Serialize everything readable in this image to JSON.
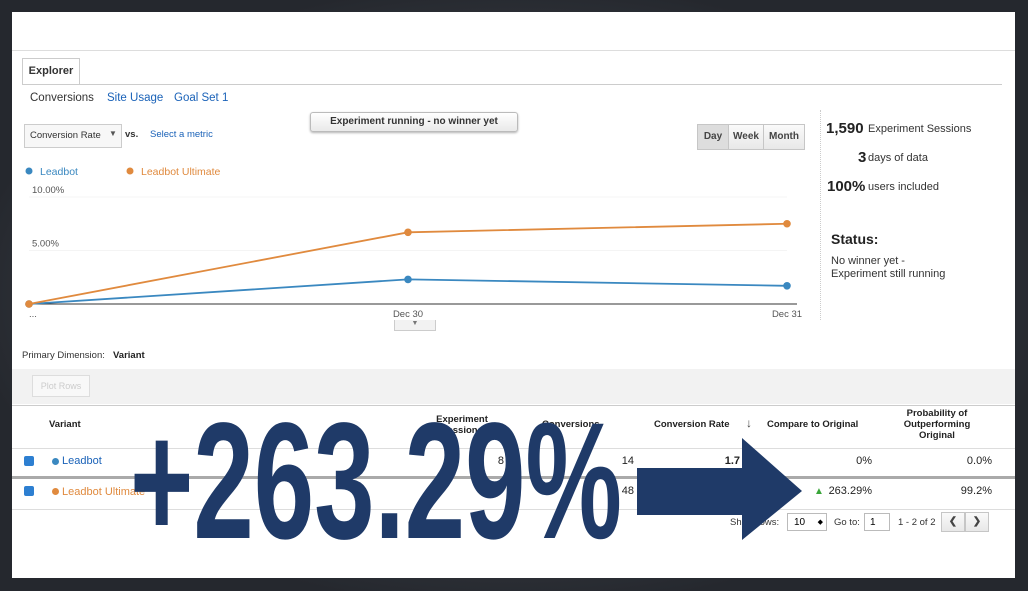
{
  "tabs": {
    "active": "Explorer",
    "items": [
      "Conversions",
      "Site Usage",
      "Goal Set 1"
    ]
  },
  "metric_selector": {
    "selected": "Conversion Rate",
    "vs": "vs.",
    "link": "Select a metric"
  },
  "tooltip": "Experiment running - no winner yet",
  "period_buttons": [
    "Day",
    "Week",
    "Month"
  ],
  "chart_data": {
    "type": "line",
    "categories": [
      "...",
      "Dec 30",
      "Dec 31"
    ],
    "series": [
      {
        "name": "Leadbot",
        "color": "#3a88c0",
        "values": [
          0,
          2.3,
          1.7
        ]
      },
      {
        "name": "Leadbot Ultimate",
        "color": "#e08a3e",
        "values": [
          0,
          6.7,
          7.5
        ]
      }
    ],
    "ylim": [
      0,
      10
    ],
    "yticks": [
      {
        "value": 5,
        "label": "5.00%"
      },
      {
        "value": 10,
        "label": "10.00%"
      }
    ]
  },
  "summary": [
    {
      "value": "1,590",
      "label": "Experiment Sessions"
    },
    {
      "value": "3",
      "label": "days of data"
    },
    {
      "value": "100%",
      "label": "users included"
    }
  ],
  "status": {
    "title": "Status:",
    "text": "No winner yet - Experiment still running"
  },
  "primary_dimension": {
    "label": "Primary Dimension:",
    "value": "Variant"
  },
  "plot_button": "Plot Rows",
  "table": {
    "columns": [
      "Variant",
      "Experiment Sessions",
      "Conversions",
      "Conversion Rate",
      "Compare to Original",
      "Probability of Outperforming Original"
    ],
    "rows": [
      {
        "variant": "Leadbot",
        "sessions": "8",
        "conversions": "14",
        "rate": "1.7",
        "compare": "0%",
        "probability": "0.0%"
      },
      {
        "variant": "Leadbot Ultimate",
        "conversions": "48",
        "compare": "263.29%",
        "probability": "99.2%"
      }
    ]
  },
  "pagination": {
    "show_rows": "Show rows:",
    "rows": "10",
    "goto": "Go to:",
    "page": "1",
    "range": "1 - 2 of 2"
  },
  "overlay": {
    "headline": "+263.29%"
  }
}
